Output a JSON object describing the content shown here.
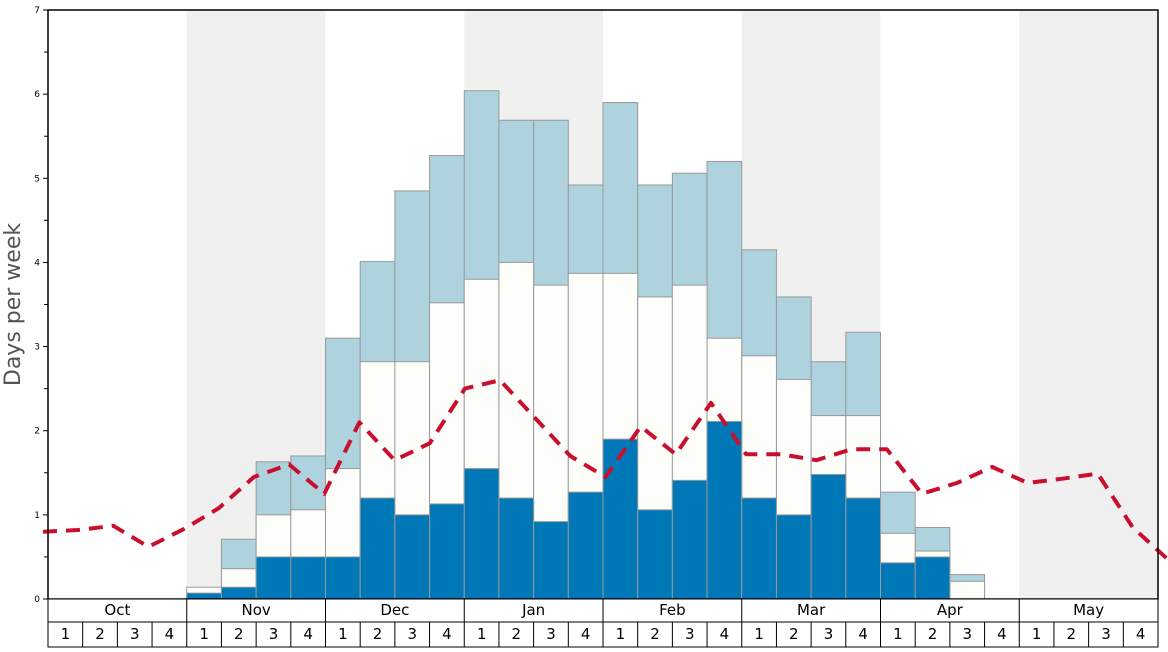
{
  "chart_data": {
    "type": "bar",
    "subtype": "stacked-bar-with-line",
    "title": "",
    "ylabel": "Days per week",
    "xlabel": "",
    "ylim": [
      0,
      7
    ],
    "yticks": [
      0,
      1,
      2,
      3,
      4,
      5,
      6,
      7
    ],
    "grid": false,
    "months": [
      "Oct",
      "Nov",
      "Dec",
      "Jan",
      "Feb",
      "Mar",
      "Apr",
      "May"
    ],
    "weeks": [
      "1",
      "2",
      "3",
      "4"
    ],
    "shaded_months": [
      "Nov",
      "Jan",
      "Mar",
      "May"
    ],
    "colors": {
      "bottom": "#0077b6",
      "middle": "#fdfdfa",
      "top": "#aed3df",
      "line": "#c8102e",
      "shade": "#f0f0f0",
      "bar_edge": "#999999"
    },
    "series": [
      {
        "values": [
          0,
          0,
          0,
          0,
          0.07,
          0.14,
          0.5,
          0.5,
          0.5,
          1.2,
          1.0,
          1.13,
          1.55,
          1.2,
          0.92,
          1.27,
          1.9,
          1.06,
          1.41,
          2.11,
          1.2,
          1.0,
          1.48,
          1.2,
          0.43,
          0.5,
          0,
          0,
          0,
          0,
          0,
          0
        ]
      },
      {
        "values": [
          0,
          0,
          0,
          0,
          0.14,
          0.36,
          1.0,
          1.06,
          1.55,
          2.82,
          2.82,
          3.52,
          3.8,
          4.0,
          3.73,
          3.87,
          3.87,
          3.59,
          3.73,
          3.1,
          2.89,
          2.61,
          2.18,
          2.18,
          0.78,
          0.57,
          0.21,
          0,
          0,
          0,
          0,
          0
        ]
      },
      {
        "values": [
          0,
          0,
          0,
          0,
          0,
          0.71,
          1.63,
          1.7,
          3.1,
          4.01,
          4.85,
          5.27,
          6.04,
          5.69,
          5.69,
          4.92,
          5.9,
          4.92,
          5.06,
          5.2,
          4.15,
          3.59,
          2.82,
          3.17,
          1.27,
          0.85,
          0.29,
          0,
          0,
          0,
          0,
          0
        ]
      }
    ],
    "line_values": [
      0.8,
      0.82,
      0.87,
      0.62,
      0.83,
      1.08,
      1.45,
      1.6,
      1.25,
      2.1,
      1.65,
      1.85,
      2.5,
      2.6,
      2.15,
      1.7,
      1.45,
      2.05,
      1.72,
      2.33,
      1.72,
      1.72,
      1.65,
      1.78,
      1.78,
      1.25,
      1.38,
      1.57,
      1.38,
      1.43,
      1.49,
      0.85,
      0.47
    ]
  }
}
